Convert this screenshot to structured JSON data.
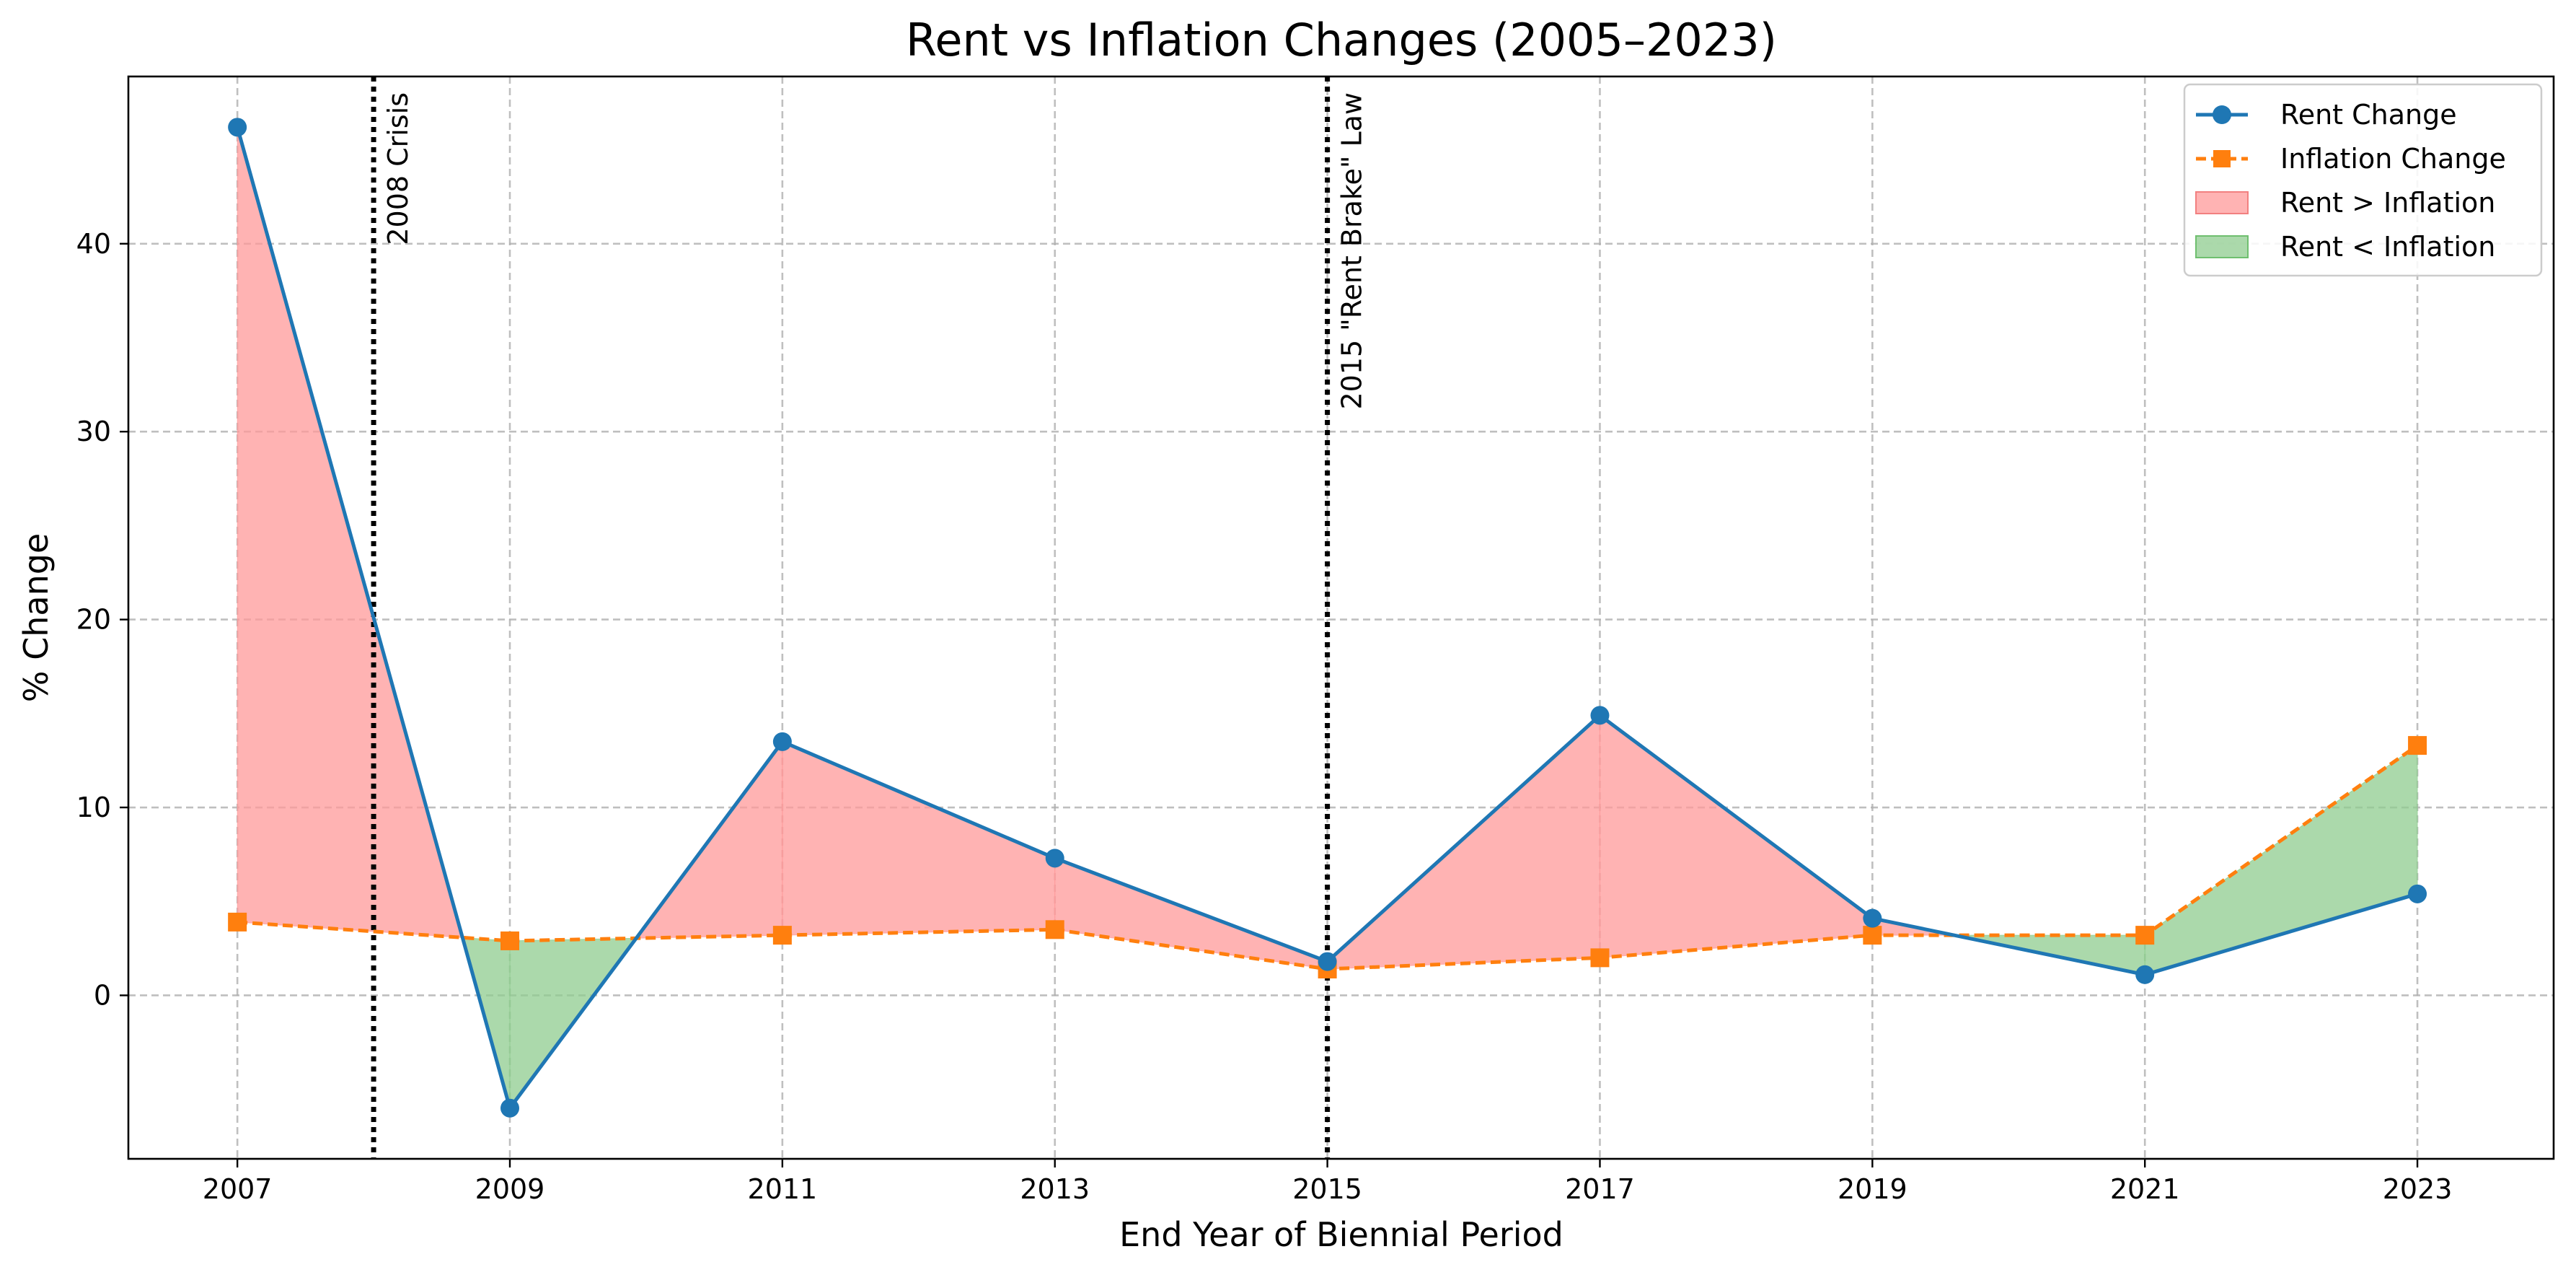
{
  "chart_data": {
    "type": "line",
    "title": "Rent vs Inflation Changes (2005–2023)",
    "xlabel": "End Year of Biennial Period",
    "ylabel": "% Change",
    "x": [
      2007,
      2009,
      2011,
      2013,
      2015,
      2017,
      2019,
      2021,
      2023
    ],
    "xlim": [
      2006.2,
      2024.0
    ],
    "ylim": [
      -8.7,
      48.9
    ],
    "yticks": [
      0,
      10,
      20,
      30,
      40
    ],
    "grid": true,
    "legend_position": "top-right",
    "series": [
      {
        "name": "Rent Change",
        "values": [
          46.2,
          -6.0,
          13.5,
          7.3,
          1.8,
          14.9,
          4.1,
          1.1,
          5.4
        ],
        "color": "#1f77b4",
        "marker": "circle",
        "linestyle": "solid"
      },
      {
        "name": "Inflation Change",
        "values": [
          3.9,
          2.9,
          3.2,
          3.5,
          1.4,
          2.0,
          3.2,
          3.2,
          13.3
        ],
        "color": "#ff7f0e",
        "marker": "square",
        "linestyle": "dashed"
      }
    ],
    "fills": [
      {
        "name": "Rent > Inflation",
        "color": "#ff9999"
      },
      {
        "name": "Rent < Inflation",
        "color": "#8fcc8f"
      }
    ],
    "annotations": [
      {
        "x": 2008,
        "text": "2008 Crisis"
      },
      {
        "x": 2015,
        "text": "2015 \"Rent Brake\" Law"
      }
    ]
  }
}
